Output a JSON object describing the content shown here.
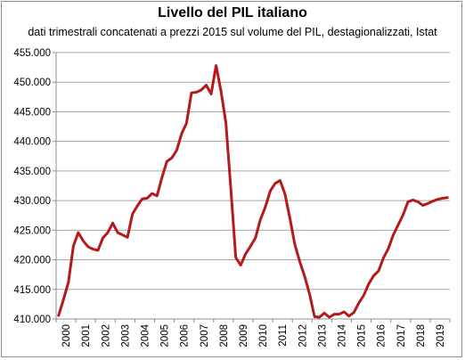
{
  "chart_data": {
    "type": "line",
    "title": "Livello del PIL italiano",
    "subtitle": "dati trimestrali concatenati a prezzi 2015 sul volume del PIL, destagionalizzati, Istat",
    "xlabel": "",
    "ylabel": "",
    "ylim": [
      410000,
      455000
    ],
    "y_ticks": [
      "410.000",
      "415.000",
      "420.000",
      "425.000",
      "430.000",
      "435.000",
      "440.000",
      "445.000",
      "450.000",
      "455.000"
    ],
    "x_ticks": [
      "2000",
      "2001",
      "2002",
      "2003",
      "2004",
      "2005",
      "2006",
      "2007",
      "2008",
      "2009",
      "2010",
      "2011",
      "2012",
      "2013",
      "2014",
      "2015",
      "2016",
      "2017",
      "2018",
      "2019"
    ],
    "grid": "horizontal",
    "series_color": "#b5191c",
    "x": [
      "2000-Q1",
      "2000-Q2",
      "2000-Q3",
      "2000-Q4",
      "2001-Q1",
      "2001-Q2",
      "2001-Q3",
      "2001-Q4",
      "2002-Q1",
      "2002-Q2",
      "2002-Q3",
      "2002-Q4",
      "2003-Q1",
      "2003-Q2",
      "2003-Q3",
      "2003-Q4",
      "2004-Q1",
      "2004-Q2",
      "2004-Q3",
      "2004-Q4",
      "2005-Q1",
      "2005-Q2",
      "2005-Q3",
      "2005-Q4",
      "2006-Q1",
      "2006-Q2",
      "2006-Q3",
      "2006-Q4",
      "2007-Q1",
      "2007-Q2",
      "2007-Q3",
      "2007-Q4",
      "2008-Q1",
      "2008-Q2",
      "2008-Q3",
      "2008-Q4",
      "2009-Q1",
      "2009-Q2",
      "2009-Q3",
      "2009-Q4",
      "2010-Q1",
      "2010-Q2",
      "2010-Q3",
      "2010-Q4",
      "2011-Q1",
      "2011-Q2",
      "2011-Q3",
      "2011-Q4",
      "2012-Q1",
      "2012-Q2",
      "2012-Q3",
      "2012-Q4",
      "2013-Q1",
      "2013-Q2",
      "2013-Q3",
      "2013-Q4",
      "2014-Q1",
      "2014-Q2",
      "2014-Q3",
      "2014-Q4",
      "2015-Q1",
      "2015-Q2",
      "2015-Q3",
      "2015-Q4",
      "2016-Q1",
      "2016-Q2",
      "2016-Q3",
      "2016-Q4",
      "2017-Q1",
      "2017-Q2",
      "2017-Q3",
      "2017-Q4",
      "2018-Q1",
      "2018-Q2",
      "2018-Q3",
      "2018-Q4",
      "2019-Q1",
      "2019-Q2",
      "2019-Q3",
      "2019-Q4"
    ],
    "series": [
      {
        "values": [
          410600,
          413300,
          416200,
          422300,
          424600,
          423200,
          422200,
          421800,
          421600,
          423700,
          424600,
          426200,
          424600,
          424200,
          423800,
          427700,
          429100,
          430300,
          430400,
          431200,
          430800,
          433900,
          436600,
          437200,
          438500,
          441300,
          443100,
          448200,
          448300,
          448700,
          449500,
          448000,
          452800,
          448500,
          443100,
          432000,
          420400,
          419100,
          421000,
          422300,
          423700,
          426800,
          428900,
          431600,
          432900,
          433400,
          431100,
          427000,
          422600,
          419700,
          417200,
          414200,
          410400,
          410300,
          411000,
          410300,
          410800,
          410800,
          411200,
          410500,
          411100,
          412700,
          414000,
          415900,
          417300,
          418100,
          420300,
          421900,
          424200,
          425900,
          427600,
          429800,
          430100,
          429800,
          429200,
          429500,
          429900,
          430200,
          430400,
          430500
        ]
      }
    ]
  }
}
